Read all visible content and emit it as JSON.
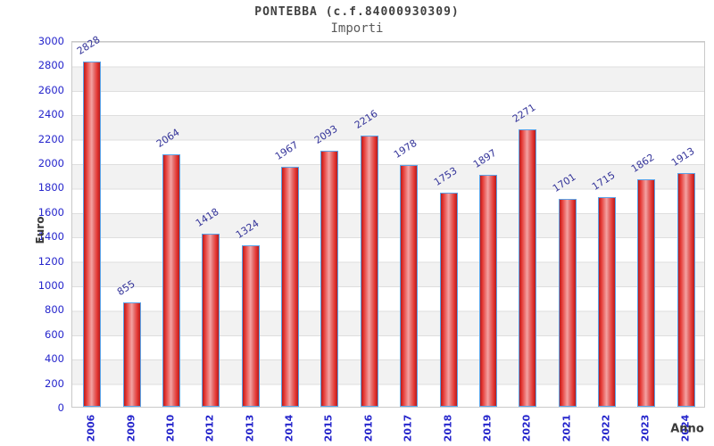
{
  "header": {
    "title": "PONTEBBA (c.f.84000930309)",
    "subtitle": "Importi"
  },
  "chart_data": {
    "type": "bar",
    "title": "PONTEBBA (c.f.84000930309)",
    "subtitle": "Importi",
    "categories": [
      "2006",
      "2009",
      "2010",
      "2012",
      "2013",
      "2014",
      "2015",
      "2016",
      "2017",
      "2018",
      "2019",
      "2020",
      "2021",
      "2022",
      "2023",
      "2024"
    ],
    "values": [
      2828,
      855,
      2064,
      1418,
      1324,
      1967,
      2093,
      2216,
      1978,
      1753,
      1897,
      2271,
      1701,
      1715,
      1862,
      1913
    ],
    "xlabel": "Anno",
    "ylabel": "Euro",
    "ylim": [
      0,
      3000
    ],
    "ytick_step": 200,
    "grid": "horizontal alternating bands",
    "legend": "none",
    "value_labels": "above bars, rotated",
    "colors": {
      "bar_fill_edge": "#b71c1c",
      "bar_fill_center": "#f4a3a3",
      "bar_border": "#5ba3e8",
      "tick_label": "#2626cc",
      "value_label": "#333399",
      "band_gray": "#f2f2f2",
      "plot_border": "#c9c9c9",
      "title_text": "#404040",
      "subtitle_text": "#5a5a5a"
    }
  }
}
